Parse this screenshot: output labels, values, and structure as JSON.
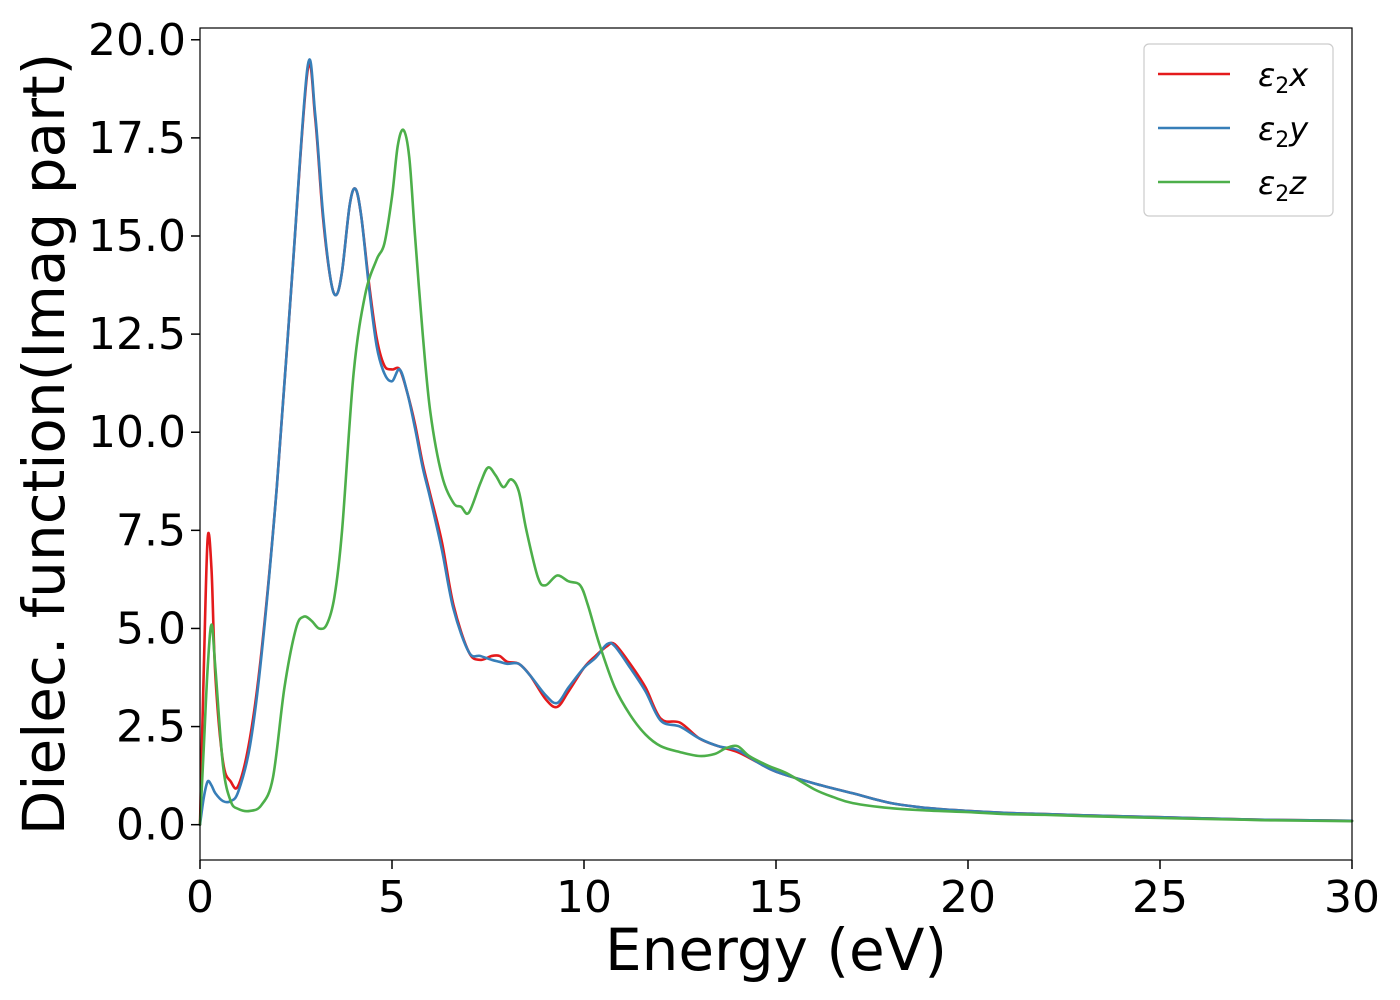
{
  "chart_data": {
    "type": "line",
    "xlabel": "Energy (eV)",
    "ylabel": "Dielec. function(Imag part)",
    "xlim": [
      0,
      30
    ],
    "ylim": [
      -0.9,
      20.3
    ],
    "xticks": [
      0,
      5,
      10,
      15,
      20,
      25,
      30
    ],
    "xtick_labels": [
      "0",
      "5",
      "10",
      "15",
      "20",
      "25",
      "30"
    ],
    "yticks": [
      0.0,
      2.5,
      5.0,
      7.5,
      10.0,
      12.5,
      15.0,
      17.5,
      20.0
    ],
    "ytick_labels": [
      "0.0",
      "2.5",
      "5.0",
      "7.5",
      "10.0",
      "12.5",
      "15.0",
      "17.5",
      "20.0"
    ],
    "grid": false,
    "legend_position": "top-right",
    "series": [
      {
        "name": "ε₂x",
        "legend_main": "ε",
        "legend_sub": "2",
        "legend_suffix": "x",
        "color": "#e41a1c",
        "x": [
          0,
          0.1,
          0.2,
          0.3,
          0.4,
          0.6,
          0.8,
          1.0,
          1.3,
          1.6,
          2.0,
          2.4,
          2.8,
          3.0,
          3.2,
          3.4,
          3.55,
          3.7,
          3.9,
          4.05,
          4.2,
          4.4,
          4.6,
          4.8,
          5.0,
          5.2,
          5.4,
          5.6,
          5.8,
          6.0,
          6.3,
          6.6,
          7.0,
          7.3,
          7.6,
          7.8,
          8.0,
          8.3,
          8.6,
          9.0,
          9.3,
          9.6,
          10.0,
          10.3,
          10.6,
          10.8,
          11.2,
          11.6,
          12.0,
          12.5,
          13.0,
          13.5,
          14.0,
          14.5,
          15.0,
          16.0,
          17.0,
          18.0,
          19.0,
          20.0,
          21.0,
          22.0,
          23.0,
          25.0,
          27.0,
          28.0,
          30.0
        ],
        "y": [
          0.0,
          4.0,
          7.3,
          6.5,
          3.8,
          1.6,
          1.1,
          1.0,
          2.2,
          4.4,
          8.6,
          14.0,
          19.2,
          18.0,
          15.5,
          13.9,
          13.5,
          14.1,
          15.8,
          16.2,
          15.5,
          13.8,
          12.4,
          11.7,
          11.6,
          11.6,
          11.0,
          10.2,
          9.2,
          8.4,
          7.2,
          5.6,
          4.4,
          4.2,
          4.3,
          4.3,
          4.15,
          4.1,
          3.8,
          3.2,
          3.0,
          3.4,
          4.0,
          4.3,
          4.55,
          4.6,
          4.1,
          3.5,
          2.7,
          2.6,
          2.2,
          2.0,
          1.85,
          1.6,
          1.35,
          1.05,
          0.8,
          0.55,
          0.42,
          0.35,
          0.3,
          0.27,
          0.24,
          0.19,
          0.14,
          0.12,
          0.1
        ]
      },
      {
        "name": "ε₂y",
        "legend_main": "ε",
        "legend_sub": "2",
        "legend_suffix": "y",
        "color": "#377eb8",
        "x": [
          0,
          0.1,
          0.2,
          0.3,
          0.4,
          0.6,
          0.8,
          1.0,
          1.3,
          1.6,
          2.0,
          2.4,
          2.8,
          3.0,
          3.2,
          3.4,
          3.55,
          3.7,
          3.9,
          4.05,
          4.2,
          4.4,
          4.6,
          4.8,
          5.0,
          5.2,
          5.4,
          5.6,
          5.8,
          6.0,
          6.3,
          6.6,
          7.0,
          7.3,
          7.6,
          7.8,
          8.0,
          8.3,
          8.6,
          9.0,
          9.3,
          9.6,
          10.0,
          10.3,
          10.6,
          10.8,
          11.2,
          11.6,
          12.0,
          12.5,
          13.0,
          13.5,
          14.0,
          14.5,
          15.0,
          16.0,
          17.0,
          18.0,
          19.0,
          20.0,
          21.0,
          22.0,
          23.0,
          25.0,
          27.0,
          28.0,
          30.0
        ],
        "y": [
          0.0,
          0.7,
          1.1,
          1.0,
          0.8,
          0.6,
          0.6,
          0.85,
          2.0,
          4.3,
          8.6,
          14.0,
          19.3,
          18.1,
          15.6,
          13.9,
          13.5,
          14.1,
          15.8,
          16.2,
          15.5,
          13.7,
          12.2,
          11.5,
          11.3,
          11.6,
          11.0,
          10.1,
          9.1,
          8.3,
          7.0,
          5.5,
          4.4,
          4.3,
          4.2,
          4.15,
          4.1,
          4.1,
          3.8,
          3.3,
          3.1,
          3.5,
          4.0,
          4.25,
          4.6,
          4.55,
          4.0,
          3.4,
          2.65,
          2.5,
          2.2,
          2.0,
          1.9,
          1.6,
          1.35,
          1.05,
          0.8,
          0.55,
          0.42,
          0.35,
          0.3,
          0.27,
          0.24,
          0.19,
          0.14,
          0.12,
          0.1
        ]
      },
      {
        "name": "ε₂z",
        "legend_main": "ε",
        "legend_sub": "2",
        "legend_suffix": "z",
        "color": "#4daf4a",
        "x": [
          0,
          0.1,
          0.2,
          0.3,
          0.4,
          0.6,
          0.8,
          1.0,
          1.3,
          1.6,
          1.9,
          2.2,
          2.5,
          2.7,
          2.9,
          3.1,
          3.3,
          3.5,
          3.7,
          4.0,
          4.3,
          4.6,
          4.8,
          5.0,
          5.15,
          5.3,
          5.45,
          5.6,
          5.8,
          6.0,
          6.3,
          6.6,
          6.8,
          7.0,
          7.3,
          7.5,
          7.7,
          7.9,
          8.1,
          8.3,
          8.5,
          8.8,
          9.0,
          9.3,
          9.6,
          9.9,
          10.1,
          10.4,
          10.8,
          11.2,
          11.6,
          12.0,
          12.5,
          13.0,
          13.4,
          13.7,
          14.0,
          14.3,
          14.8,
          15.3,
          16.0,
          16.5,
          17.0,
          18.0,
          19.0,
          20.0,
          21.0,
          22.0,
          23.0,
          25.0,
          27.0,
          28.0,
          30.0
        ],
        "y": [
          0.0,
          2.0,
          4.0,
          5.1,
          4.0,
          1.5,
          0.6,
          0.4,
          0.35,
          0.5,
          1.2,
          3.5,
          5.0,
          5.3,
          5.2,
          5.0,
          5.1,
          5.8,
          7.5,
          11.5,
          13.5,
          14.4,
          14.8,
          16.0,
          17.3,
          17.7,
          17.0,
          15.0,
          12.5,
          10.5,
          8.9,
          8.2,
          8.1,
          7.95,
          8.7,
          9.1,
          8.9,
          8.6,
          8.8,
          8.5,
          7.5,
          6.3,
          6.1,
          6.35,
          6.2,
          6.1,
          5.6,
          4.6,
          3.5,
          2.8,
          2.3,
          2.0,
          1.85,
          1.75,
          1.8,
          1.95,
          2.0,
          1.75,
          1.5,
          1.3,
          0.9,
          0.7,
          0.55,
          0.42,
          0.36,
          0.32,
          0.27,
          0.25,
          0.22,
          0.17,
          0.13,
          0.11,
          0.09
        ]
      }
    ]
  }
}
